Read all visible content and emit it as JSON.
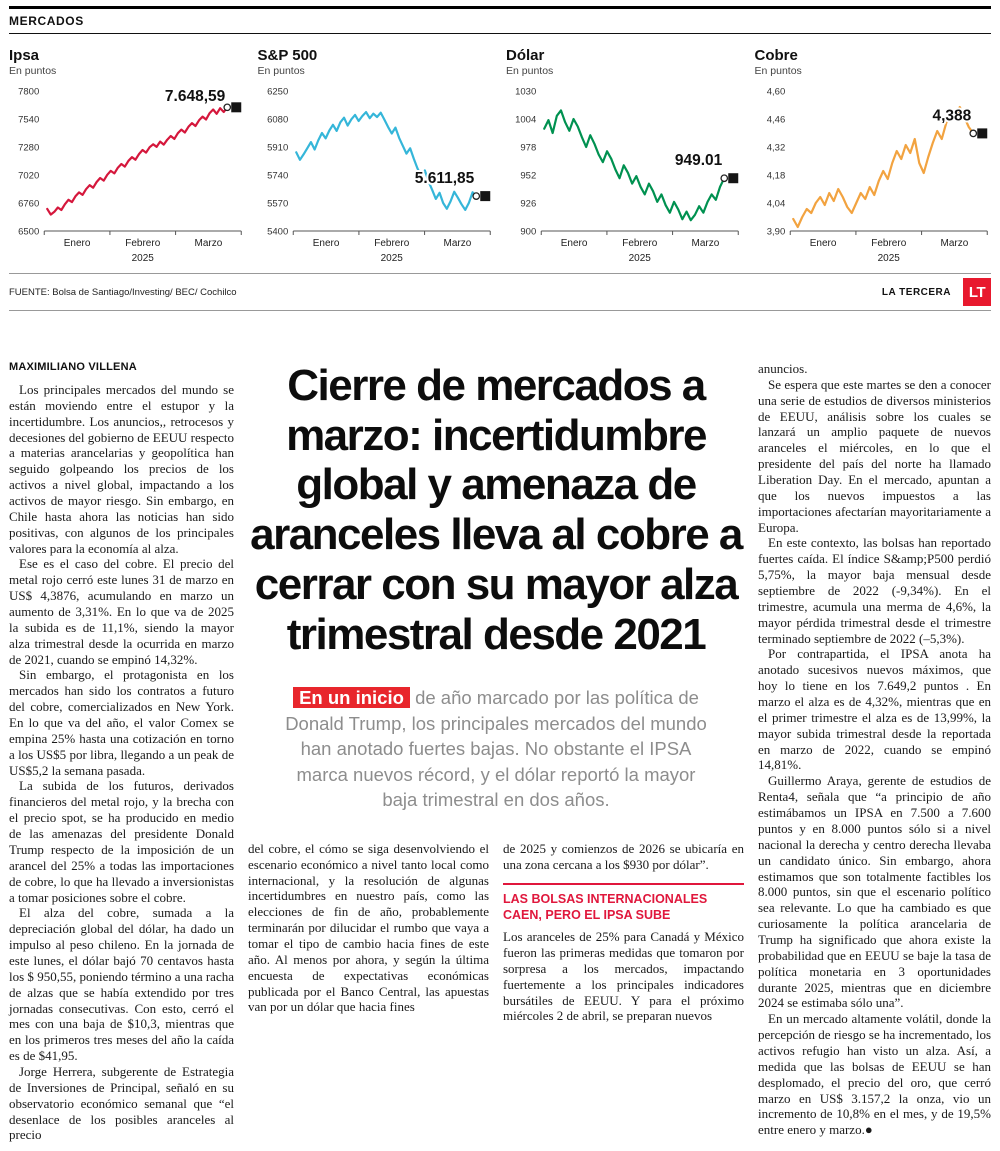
{
  "masthead": {
    "section": "MERCADOS"
  },
  "source_row": {
    "source": "FUENTE: Bolsa de Santiago/Investing/ BEC/ Cochilco",
    "brand": "LA TERCERA",
    "logo": "LT"
  },
  "chart_data": [
    {
      "type": "line",
      "title": "Ipsa",
      "subtitle": "En puntos",
      "color": "#d5173c",
      "value_label": "7.648,59",
      "ymin": 6500,
      "ymax": 7800,
      "yticks": [
        {
          "label": "7800",
          "value": 7800
        },
        {
          "label": "7540",
          "value": 7540
        },
        {
          "label": "7280",
          "value": 7280
        },
        {
          "label": "7020",
          "value": 7020
        },
        {
          "label": "6760",
          "value": 6760
        },
        {
          "label": "6500",
          "value": 6500
        }
      ],
      "xlabels": [
        "Enero",
        "Febrero",
        "Marzo"
      ],
      "year": "2025",
      "values": [
        6705,
        6652,
        6678,
        6718,
        6695,
        6748,
        6790,
        6768,
        6822,
        6858,
        6835,
        6888,
        6925,
        6902,
        6955,
        6992,
        6968,
        7022,
        7058,
        7035,
        7088,
        7122,
        7098,
        7152,
        7185,
        7162,
        7215,
        7252,
        7228,
        7278,
        7305,
        7282,
        7330,
        7302,
        7348,
        7382,
        7355,
        7408,
        7442,
        7415,
        7468,
        7502,
        7475,
        7528,
        7562,
        7535,
        7595,
        7628,
        7588,
        7640,
        7605,
        7648.59
      ]
    },
    {
      "type": "line",
      "title": "S&P 500",
      "subtitle": "En puntos",
      "color": "#35b6d9",
      "value_label": "5.611,85",
      "ymin": 5400,
      "ymax": 6250,
      "yticks": [
        {
          "label": "6250",
          "value": 6250
        },
        {
          "label": "6080",
          "value": 6080
        },
        {
          "label": "5910",
          "value": 5910
        },
        {
          "label": "5740",
          "value": 5740
        },
        {
          "label": "5570",
          "value": 5570
        },
        {
          "label": "5400",
          "value": 5400
        }
      ],
      "xlabels": [
        "Enero",
        "Febrero",
        "Marzo"
      ],
      "year": "2025",
      "values": [
        5878,
        5832,
        5865,
        5902,
        5940,
        5895,
        5950,
        5995,
        5962,
        6010,
        6045,
        6008,
        6060,
        6088,
        6040,
        6078,
        6105,
        6068,
        6098,
        6122,
        6085,
        6112,
        6092,
        6118,
        6075,
        6032,
        5992,
        6028,
        5965,
        5918,
        5870,
        5902,
        5838,
        5780,
        5735,
        5768,
        5702,
        5650,
        5595,
        5632,
        5570,
        5535,
        5580,
        5638,
        5602,
        5562,
        5528,
        5572,
        5635,
        5611.85
      ]
    },
    {
      "type": "line",
      "title": "Dólar",
      "subtitle": "En puntos",
      "color": "#009150",
      "value_label": "949.01",
      "ymin": 900,
      "ymax": 1030,
      "yticks": [
        {
          "label": "1030",
          "value": 1030
        },
        {
          "label": "1004",
          "value": 1004
        },
        {
          "label": "978",
          "value": 978
        },
        {
          "label": "952",
          "value": 952
        },
        {
          "label": "926",
          "value": 926
        },
        {
          "label": "900",
          "value": 900
        }
      ],
      "xlabels": [
        "Enero",
        "Febrero",
        "Marzo"
      ],
      "year": "2025",
      "values": [
        995,
        1003,
        991,
        1007,
        1012,
        1001,
        993,
        1004,
        997,
        987,
        978,
        989,
        981,
        971,
        964,
        974,
        967,
        957,
        949,
        961,
        954,
        944,
        951,
        941,
        934,
        944,
        937,
        927,
        934,
        924,
        917,
        927,
        920,
        911,
        918,
        910,
        915,
        923,
        917,
        927,
        934,
        929,
        941,
        949.01
      ]
    },
    {
      "type": "line",
      "title": "Cobre",
      "subtitle": "En puntos",
      "color": "#f2a340",
      "value_label": "4,388",
      "ymin": 3.9,
      "ymax": 4.6,
      "yticks": [
        {
          "label": "4,60",
          "value": 4.6
        },
        {
          "label": "4,46",
          "value": 4.46
        },
        {
          "label": "4,32",
          "value": 4.32
        },
        {
          "label": "4,18",
          "value": 4.18
        },
        {
          "label": "4,04",
          "value": 4.04
        },
        {
          "label": "3,90",
          "value": 3.9
        }
      ],
      "xlabels": [
        "Enero",
        "Febrero",
        "Marzo"
      ],
      "year": "2025",
      "values": [
        3.96,
        3.92,
        3.97,
        4.01,
        3.99,
        4.04,
        4.07,
        4.03,
        4.09,
        4.05,
        4.11,
        4.07,
        4.02,
        3.99,
        4.04,
        4.09,
        4.06,
        4.12,
        4.08,
        4.15,
        4.2,
        4.16,
        4.24,
        4.3,
        4.26,
        4.33,
        4.29,
        4.36,
        4.24,
        4.19,
        4.27,
        4.34,
        4.4,
        4.36,
        4.44,
        4.5,
        4.46,
        4.52,
        4.47,
        4.42,
        4.388
      ]
    }
  ],
  "article": {
    "byline": "MAXIMILIANO VILLENA",
    "headline": "Cierre de mercados a marzo: incertidumbre global y amenaza de aranceles lleva al cobre a cerrar con su mayor alza trimestral desde 2021",
    "deck_highlight": "En un inicio",
    "deck_rest": "de año marcado por las política de Donald Trump, los principales mercados del mundo han anotado fuertes bajas. No obstante el IPSA marca nuevos récord, y el dólar reportó la mayor baja trimestral en dos años.",
    "col1": [
      "Los principales mercados del mundo se están moviendo entre el estupor y la incertidumbre. Los anuncios,, retrocesos y decesiones del gobierno de EEUU respecto a materias arancelarias y geopolítica han seguido golpeando los precios de los activos a nivel global, impactando a los activos de mayor riesgo. Sin embargo, en Chile hasta ahora las noticias han sido positivas, con algunos de los principales valores para la economía al alza.",
      "Ese es el caso del cobre. El precio del metal rojo cerró este lunes 31 de marzo en US$ 4,3876, acumulando en marzo un aumento de 3,31%. En lo que va de 2025 la subida es de 11,1%, siendo la mayor alza trimestral desde la ocurrida en marzo de 2021, cuando se empinó 14,32%.",
      "Sin embargo, el protagonista en los mercados han sido los contratos a futuro del cobre, comercializados en New York. En lo que va del año, el valor Comex se empina 25% hasta una cotización en torno a los US$5 por libra, llegando a un peak de US$5,2 la semana pasada.",
      "La subida de los futuros, derivados financieros del metal rojo, y la brecha con el precio spot, se ha producido en medio de las amenazas del presidente Donald Trump respecto de la imposición de un arancel del 25% a todas las importaciones de cobre, lo que ha llevado a inversionistas a tomar posiciones sobre el cobre.",
      "El alza del cobre, sumada a la depreciación global del dólar, ha dado un impulso al peso chileno. En la jornada de este lunes, el dólar bajó 70 centavos hasta los $ 950,55, poniendo término a una racha de alzas que se había extendido por tres jornadas consecutivas. Con esto, cerró el mes con una baja de $10,3, mientras que en los primeros tres meses del año la caída es de $41,95.",
      "Jorge Herrera, subgerente de Estrategia de Inversiones de Principal, señaló en su observatorio económico semanal que “el desenlace de los posibles aranceles al precio"
    ],
    "colA": [
      "del cobre, el cómo se siga desenvolviendo el escenario económico a nivel tanto local como internacional, y la resolución de algunas incertidumbres en nuestro país, como las elecciones de fin de año, probablemente terminarán por dilucidar el rumbo que vaya a tomar el tipo de cambio hacia fines de este año. Al menos por ahora, y según la última encuesta de expectativas económicas publicada por el Banco Central, las apuestas van por un dólar que hacia fines"
    ],
    "colB_lead": "de 2025 y comienzos de 2026 se ubicaría en una zona cercana a los $930 por dólar”.",
    "colB_subhead": "LAS BOLSAS INTERNACIONALES CAEN, PERO EL IPSA SUBE",
    "colB": [
      "Los aranceles de 25% para Canadá y México fueron las primeras medidas que tomaron por sorpresa a los mercados, impactando fuertemente a los principales indicadores bursátiles de EEUU. Y para el próximo miércoles 2 de abril, se preparan nuevos"
    ],
    "col4": [
      "anuncios.",
      "Se espera que este martes se den a conocer una serie de estudios de diversos ministerios de EEUU, análisis sobre los cuales se lanzará un amplio paquete de nuevos aranceles el miércoles, en lo que el presidente del país del norte ha llamado Liberation Day. En el mercado, apuntan a que los nuevos impuestos a las importaciones afectarían mayoritariamente a Europa.",
      "En este contexto, las bolsas han reportado fuertes caída. El índice S&amp;P500 perdió 5,75%, la mayor baja mensual desde septiembre de 2022 (-9,34%). En el trimestre, acumula una merma de 4,6%, la mayor pérdida trimestral desde el trimestre terminado septiembre de 2022 (–5,3%).",
      "Por contrapartida, el IPSA anota ha anotado sucesivos nuevos máximos, que hoy lo tiene en los 7.649,2 puntos . En marzo el alza es de 4,32%, mientras que en el primer trimestre el alza es de 13,99%, la mayor subida trimestral desde la reportada en marzo de 2022, cuando se empinó 14,81%.",
      "Guillermo Araya, gerente de estudios de Renta4, señala que “a principio de año estimábamos un IPSA en 7.500 a 7.600 puntos y en 8.000 puntos sólo si a nivel nacional la derecha y centro derecha llevaba un candidato único. Sin embargo, ahora estimamos que son totalmente factibles los 8.000 puntos, sin que el escenario político sea relevante. Lo que ha cambiado es que curiosamente la política arancelaria de Trump ha significado que ahora existe la probabilidad que en EEUU se baje la tasa de política monetaria en 3 oportunidades durante 2025, mientras que en diciembre 2024 se estimaba sólo una”.",
      "En un mercado altamente volátil, donde la percepción de riesgo se ha incrementado, los activos refugio han visto un alza. Así, a medida que las bolsas de EEUU se han desplomado, el precio del oro, que cerró marzo en US$ 3.157,2 la onza, vio un incremento de 10,8% en el mes, y de 19,5% entre enero y marzo.●"
    ]
  }
}
